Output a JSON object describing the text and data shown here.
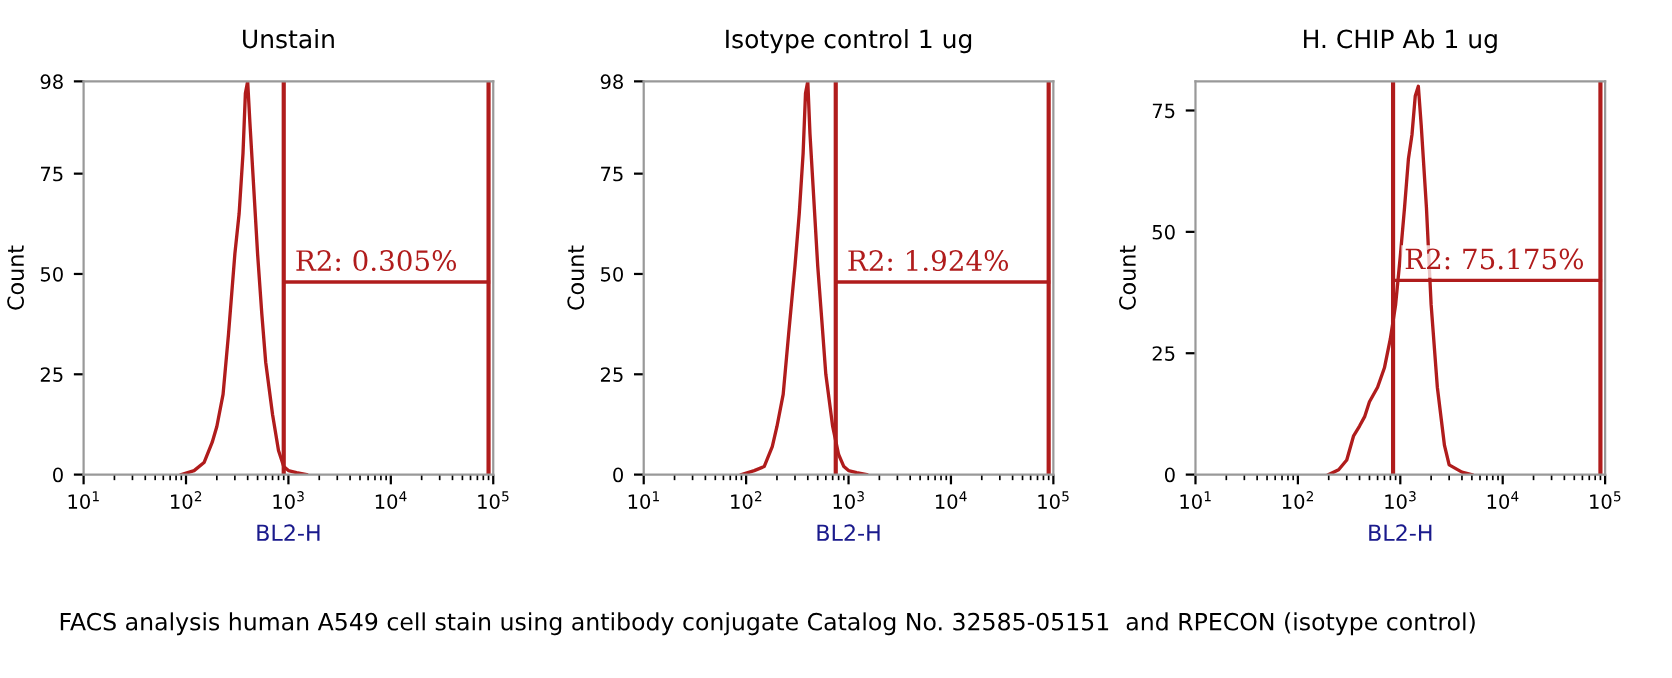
{
  "chart_data": [
    {
      "type": "line",
      "title": "Unstain",
      "xlabel": "BL2-H",
      "ylabel": "Count",
      "log": "x",
      "xlim": [
        10,
        100000
      ],
      "ylim": [
        0,
        98
      ],
      "xticks": [
        {
          "value": 10,
          "label": "10$^{1}$"
        },
        {
          "value": 100,
          "label": "10$^{2}$"
        },
        {
          "value": 1000,
          "label": "10$^{3}$"
        },
        {
          "value": 10000,
          "label": "10$^{4}$"
        },
        {
          "value": 100000,
          "label": "10$^{5}$"
        }
      ],
      "yticks": [
        0,
        25,
        50,
        75,
        98
      ],
      "grid": false,
      "legend": false,
      "series": [
        {
          "color": "#b01c1c",
          "x": [
            90,
            120,
            150,
            180,
            200,
            230,
            260,
            300,
            330,
            360,
            380,
            400,
            420,
            450,
            500,
            550,
            600,
            700,
            800,
            900,
            1000,
            1200,
            1500
          ],
          "values": [
            0,
            1,
            3,
            8,
            12,
            20,
            35,
            55,
            65,
            80,
            95,
            98,
            88,
            75,
            55,
            40,
            28,
            15,
            6,
            2,
            1,
            0.5,
            0
          ]
        },
        {
          "color": "#b01c1c",
          "x": [
            900,
            90000
          ],
          "values": [
            48,
            48
          ]
        }
      ],
      "ref_lines": [
        {
          "axis": "x",
          "value": 900,
          "color": "#b01c1c"
        },
        {
          "axis": "x",
          "value": 90000,
          "color": "#b01c1c"
        }
      ],
      "annotations": [
        {
          "text": "R2: 0.305%",
          "x": 900,
          "y": 48
        },
        "FACS analysis human A549 cell stain using antibody conjugate Catalog No. 32585-05151  and RPECON (isotype control)"
      ]
    },
    {
      "type": "line",
      "title": "Isotype control 1 ug",
      "xlabel": "BL2-H",
      "ylabel": "Count",
      "log": "x",
      "xlim": [
        10,
        100000
      ],
      "ylim": [
        0,
        98
      ],
      "xticks": [
        {
          "value": 10,
          "label": "10$^{1}$"
        },
        {
          "value": 100,
          "label": "10$^{2}$"
        },
        {
          "value": 1000,
          "label": "10$^{3}$"
        },
        {
          "value": 10000,
          "label": "10$^{4}$"
        },
        {
          "value": 100000,
          "label": "10$^{5}$"
        }
      ],
      "yticks": [
        0,
        25,
        50,
        75,
        98
      ],
      "grid": false,
      "legend": false,
      "series": [
        {
          "color": "#b01c1c",
          "x": [
            90,
            120,
            150,
            180,
            200,
            230,
            260,
            300,
            330,
            360,
            380,
            400,
            420,
            450,
            500,
            550,
            600,
            700,
            800,
            900,
            1000,
            1200,
            1500
          ],
          "values": [
            0,
            1,
            2,
            7,
            12,
            20,
            35,
            52,
            65,
            80,
            95,
            98,
            85,
            72,
            52,
            38,
            25,
            12,
            5,
            2,
            1,
            0.5,
            0
          ]
        },
        {
          "color": "#b01c1c",
          "x": [
            750,
            90000
          ],
          "values": [
            48,
            48
          ]
        }
      ],
      "ref_lines": [
        {
          "axis": "x",
          "value": 750,
          "color": "#b01c1c"
        },
        {
          "axis": "x",
          "value": 90000,
          "color": "#b01c1c"
        }
      ],
      "annotations": [
        {
          "text": "R2: 1.924%",
          "x": 750,
          "y": 48
        }
      ]
    },
    {
      "type": "line",
      "title": "H. CHIP Ab 1 ug",
      "xlabel": "BL2-H",
      "ylabel": "Count",
      "log": "x",
      "xlim": [
        10,
        100000
      ],
      "ylim": [
        0,
        81
      ],
      "xticks": [
        {
          "value": 10,
          "label": "10$^{1}$"
        },
        {
          "value": 100,
          "label": "10$^{2}$"
        },
        {
          "value": 1000,
          "label": "10$^{3}$"
        },
        {
          "value": 10000,
          "label": "10$^{4}$"
        },
        {
          "value": 100000,
          "label": "10$^{5}$"
        }
      ],
      "yticks": [
        0,
        25,
        50,
        75
      ],
      "grid": false,
      "legend": false,
      "series": [
        {
          "color": "#b01c1c",
          "x": [
            200,
            250,
            300,
            350,
            400,
            450,
            500,
            600,
            700,
            800,
            900,
            1000,
            1100,
            1200,
            1300,
            1400,
            1500,
            1600,
            1800,
            2000,
            2300,
            2700,
            3000,
            4000,
            5000
          ],
          "values": [
            0,
            1,
            3,
            8,
            10,
            12,
            15,
            18,
            22,
            28,
            35,
            45,
            55,
            65,
            70,
            78,
            80,
            72,
            55,
            35,
            18,
            6,
            2,
            0.5,
            0
          ]
        },
        {
          "color": "#b01c1c",
          "x": [
            850,
            90000
          ],
          "values": [
            40,
            40
          ]
        }
      ],
      "ref_lines": [
        {
          "axis": "x",
          "value": 850,
          "color": "#b01c1c"
        },
        {
          "axis": "x",
          "value": 90000,
          "color": "#b01c1c"
        }
      ],
      "annotations": [
        {
          "text": "R2: 75.175%",
          "x": 850,
          "y": 40
        }
      ]
    }
  ]
}
